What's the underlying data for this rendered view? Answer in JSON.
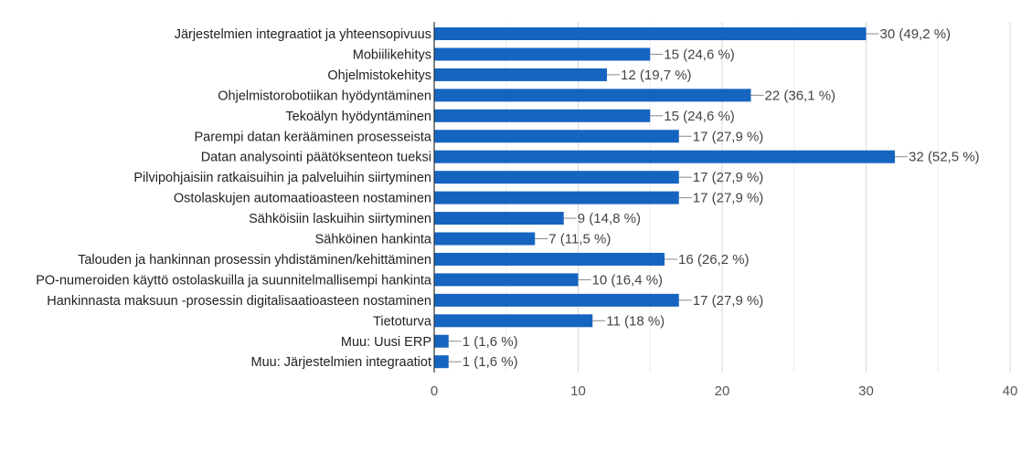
{
  "chart_data": {
    "type": "bar",
    "orientation": "horizontal",
    "title": "",
    "xlabel": "",
    "ylabel": "",
    "xlim": [
      0,
      40
    ],
    "x_ticks": [
      0,
      10,
      20,
      30,
      40
    ],
    "grid": true,
    "legend": "none",
    "bar_color": "#1565C0",
    "categories": [
      "Järjestelmien integraatiot ja yhteensopivuus",
      "Mobiilikehitys",
      "Ohjelmistokehitys",
      "Ohjelmistorobotiikan hyödyntäminen",
      "Tekoälyn hyödyntäminen",
      "Parempi datan kerääminen prosesseista",
      "Datan analysointi päätöksenteon tueksi",
      "Pilvipohjaisiin ratkaisuihin ja palveluihin siirtyminen",
      "Ostolaskujen automaatioasteen nostaminen",
      "Sähköisiin laskuihin siirtyminen",
      "Sähköinen hankinta",
      "Talouden ja hankinnan prosessin yhdistäminen/kehittäminen",
      "PO-numeroiden käyttö ostolaskuilla ja suunnitelmallisempi hankinta",
      "Hankinnasta maksuun -prosessin digitalisaatioasteen nostaminen",
      "Tietoturva",
      "Muu: Uusi ERP",
      "Muu: Järjestelmien integraatiot"
    ],
    "values": [
      30,
      15,
      12,
      22,
      15,
      17,
      32,
      17,
      17,
      9,
      7,
      16,
      10,
      17,
      11,
      1,
      1
    ],
    "data_labels": [
      "30 (49,2 %)",
      "15 (24,6 %)",
      "12 (19,7 %)",
      "22 (36,1 %)",
      "15 (24,6 %)",
      "17 (27,9 %)",
      "32 (52,5 %)",
      "17 (27,9 %)",
      "17 (27,9 %)",
      "9 (14,8 %)",
      "7 (11,5 %)",
      "16 (26,2 %)",
      "10 (16,4 %)",
      "17 (27,9 %)",
      "11 (18 %)",
      "1 (1,6 %)",
      "1 (1,6 %)"
    ]
  }
}
